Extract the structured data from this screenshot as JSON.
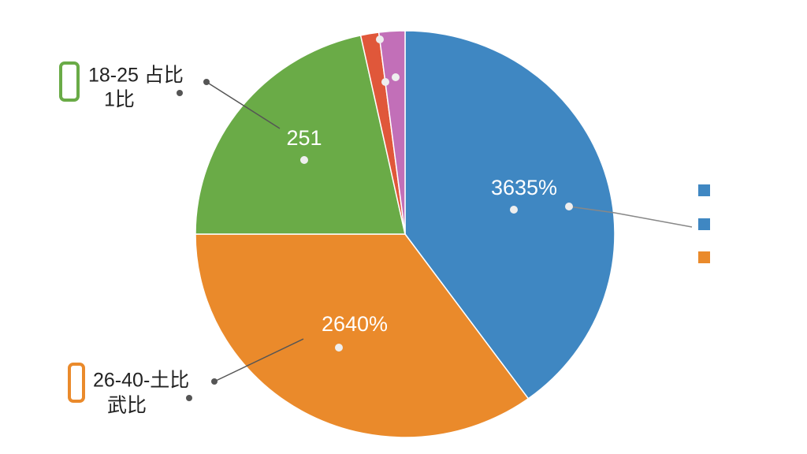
{
  "chart_data": {
    "type": "pie",
    "values": [
      40,
      35,
      21.6,
      1.4,
      2
    ],
    "colors": [
      "#3f87c2",
      "#ea8a2b",
      "#6aab47",
      "#e0573a",
      "#c26fb8"
    ],
    "annotations": [
      "18-25 占比",
      "1比",
      "26-40-土比",
      "武比",
      "251",
      "3635%",
      "2640%"
    ]
  }
}
